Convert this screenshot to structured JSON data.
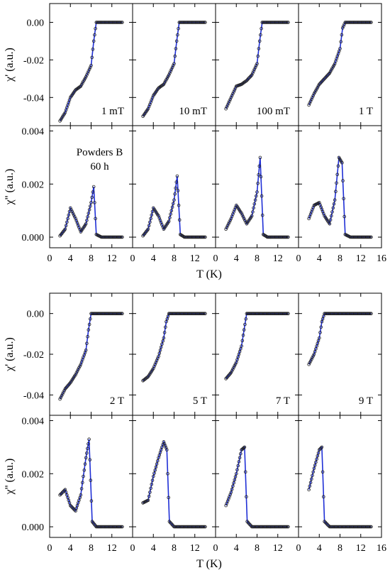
{
  "chart_data": {
    "type": "line",
    "annotation": "Powders B\n60 h",
    "xlabel": "T (K)",
    "xlim": [
      0,
      16
    ],
    "x_ticks": [
      0,
      4,
      8,
      12,
      16
    ],
    "x_ticklabels": [
      "0",
      "4",
      "8",
      "12",
      "16"
    ],
    "x_ticklabels_last_col": [
      "0",
      "4",
      "8",
      "12",
      "16"
    ],
    "x_ticklabels_other_cols": [
      "0",
      "4",
      "8",
      "12"
    ],
    "rows": [
      {
        "ylabel": "χ' (a.u.)",
        "ylim": [
          -0.055,
          0.01
        ],
        "yticks": [
          "0.00",
          "-0.02",
          "-0.04"
        ],
        "ytick_values": [
          0.0,
          -0.02,
          -0.04
        ]
      },
      {
        "ylabel": "χ'' (a.u.)",
        "ylim": [
          -0.0004,
          0.0042
        ],
        "yticks": [
          "0.004",
          "0.002",
          "0.000"
        ],
        "ytick_values": [
          0.004,
          0.002,
          0.0
        ]
      },
      {
        "ylabel": "χ' (a.u.)",
        "ylim": [
          -0.05,
          0.01
        ],
        "yticks": [
          "0.00",
          "-0.02",
          "-0.04"
        ],
        "ytick_values": [
          0.0,
          -0.02,
          -0.04
        ]
      },
      {
        "ylabel": "χ'' (a.u.)",
        "ylim": [
          -0.0004,
          0.0042
        ],
        "yticks": [
          "0.004",
          "0.002",
          "0.000"
        ],
        "ytick_values": [
          0.004,
          0.002,
          0.0
        ]
      }
    ],
    "field_labels": [
      "1 mT",
      "10 mT",
      "100 mT",
      "1 T",
      "2 T",
      "5 T",
      "7 T",
      "9 T"
    ],
    "series": [
      {
        "name": "1 mT",
        "chi_real": {
          "x": [
            2,
            3,
            4,
            5,
            6,
            7,
            8,
            8.5,
            9,
            10,
            12,
            14
          ],
          "y": [
            -0.0525,
            -0.048,
            -0.04,
            -0.036,
            -0.034,
            -0.029,
            -0.023,
            -0.01,
            0.0,
            0.0,
            0.0,
            0.0
          ]
        },
        "chi_imag": {
          "x": [
            2,
            3,
            4,
            5,
            6,
            7,
            8,
            8.5,
            9,
            10,
            12,
            14
          ],
          "y": [
            5e-05,
            0.0003,
            0.0011,
            0.0007,
            0.0002,
            0.0005,
            0.0013,
            0.0019,
            0.0001,
            0.0,
            0.0,
            0.0
          ]
        }
      },
      {
        "name": "10 mT",
        "chi_real": {
          "x": [
            2,
            3,
            4,
            5,
            6,
            7,
            8,
            8.5,
            9,
            10,
            12,
            14
          ],
          "y": [
            -0.05,
            -0.046,
            -0.039,
            -0.035,
            -0.033,
            -0.028,
            -0.022,
            -0.01,
            0.0,
            0.0,
            0.0,
            0.0
          ]
        },
        "chi_imag": {
          "x": [
            2,
            3,
            4,
            5,
            6,
            7,
            8,
            8.6,
            9.2,
            10,
            12,
            14
          ],
          "y": [
            5e-05,
            0.0003,
            0.0011,
            0.0008,
            0.0003,
            0.0006,
            0.0014,
            0.0023,
            0.0001,
            0.0,
            0.0,
            0.0
          ]
        }
      },
      {
        "name": "100 mT",
        "chi_real": {
          "x": [
            2,
            3,
            4,
            5,
            6,
            7,
            8,
            8.5,
            9,
            10,
            12,
            14
          ],
          "y": [
            -0.046,
            -0.04,
            -0.034,
            -0.033,
            -0.031,
            -0.028,
            -0.022,
            -0.01,
            0.0,
            0.0,
            0.0,
            0.0
          ]
        },
        "chi_imag": {
          "x": [
            2,
            3,
            4,
            5,
            6,
            7,
            8,
            8.6,
            9.2,
            10,
            12,
            14
          ],
          "y": [
            0.0003,
            0.0007,
            0.0012,
            0.0009,
            0.0005,
            0.0008,
            0.0017,
            0.003,
            0.0001,
            0.0,
            0.0,
            0.0
          ]
        }
      },
      {
        "name": "1 T",
        "chi_real": {
          "x": [
            2,
            3,
            4,
            5,
            6,
            7,
            8,
            8.5,
            9,
            10,
            12,
            14
          ],
          "y": [
            -0.044,
            -0.038,
            -0.033,
            -0.03,
            -0.027,
            -0.022,
            -0.014,
            -0.003,
            0.0,
            0.0,
            0.0,
            0.0
          ]
        },
        "chi_imag": {
          "x": [
            2,
            3,
            4,
            5,
            6,
            7,
            7.8,
            8.4,
            9,
            10,
            12,
            14
          ],
          "y": [
            0.0007,
            0.0012,
            0.0013,
            0.0008,
            0.0005,
            0.0014,
            0.003,
            0.0028,
            0.0001,
            0.0,
            0.0,
            0.0
          ]
        }
      },
      {
        "name": "2 T",
        "chi_real": {
          "x": [
            2,
            3,
            4,
            5,
            6,
            7,
            7.5,
            8,
            9,
            10,
            12,
            14
          ],
          "y": [
            -0.042,
            -0.037,
            -0.034,
            -0.03,
            -0.025,
            -0.018,
            -0.008,
            0.0,
            0.0,
            0.0,
            0.0,
            0.0
          ]
        },
        "chi_imag": {
          "x": [
            2,
            3,
            4,
            5,
            6,
            7,
            7.6,
            8.2,
            9,
            10,
            12,
            14
          ],
          "y": [
            0.0012,
            0.0014,
            0.0008,
            0.0006,
            0.0012,
            0.0026,
            0.0033,
            0.0002,
            0.0,
            0.0,
            0.0,
            0.0
          ]
        }
      },
      {
        "name": "5 T",
        "chi_real": {
          "x": [
            2,
            3,
            4,
            5,
            6,
            6.5,
            7,
            8,
            10,
            12,
            14
          ],
          "y": [
            -0.033,
            -0.031,
            -0.027,
            -0.021,
            -0.012,
            -0.004,
            0.0,
            0.0,
            0.0,
            0.0,
            0.0
          ]
        },
        "chi_imag": {
          "x": [
            2,
            3,
            4,
            5,
            6,
            6.6,
            7.1,
            8,
            10,
            12,
            14
          ],
          "y": [
            0.0009,
            0.001,
            0.0019,
            0.0026,
            0.0032,
            0.0029,
            0.0002,
            0.0,
            0.0,
            0.0,
            0.0
          ]
        }
      },
      {
        "name": "7 T",
        "chi_real": {
          "x": [
            2,
            3,
            4,
            5,
            5.5,
            6,
            7,
            8,
            10,
            12,
            14
          ],
          "y": [
            -0.032,
            -0.029,
            -0.024,
            -0.016,
            -0.008,
            0.0,
            0.0,
            0.0,
            0.0,
            0.0,
            0.0
          ]
        },
        "chi_imag": {
          "x": [
            2,
            3,
            4,
            5,
            5.6,
            6.1,
            7,
            8,
            10,
            12,
            14
          ],
          "y": [
            0.0008,
            0.0013,
            0.002,
            0.0029,
            0.003,
            0.0002,
            0.0,
            0.0,
            0.0,
            0.0,
            0.0
          ]
        }
      },
      {
        "name": "9 T",
        "chi_real": {
          "x": [
            2,
            3,
            4,
            4.5,
            5,
            6,
            8,
            10,
            12,
            14
          ],
          "y": [
            -0.025,
            -0.02,
            -0.012,
            -0.004,
            0.0,
            0.0,
            0.0,
            0.0,
            0.0,
            0.0
          ]
        },
        "chi_imag": {
          "x": [
            2,
            3,
            4,
            4.5,
            5,
            6,
            8,
            10,
            12,
            14
          ],
          "y": [
            0.0014,
            0.0022,
            0.0029,
            0.003,
            0.0002,
            0.0,
            0.0,
            0.0,
            0.0,
            0.0
          ]
        }
      }
    ],
    "line_color": "#1f2fd6",
    "marker_color": "#222222"
  }
}
